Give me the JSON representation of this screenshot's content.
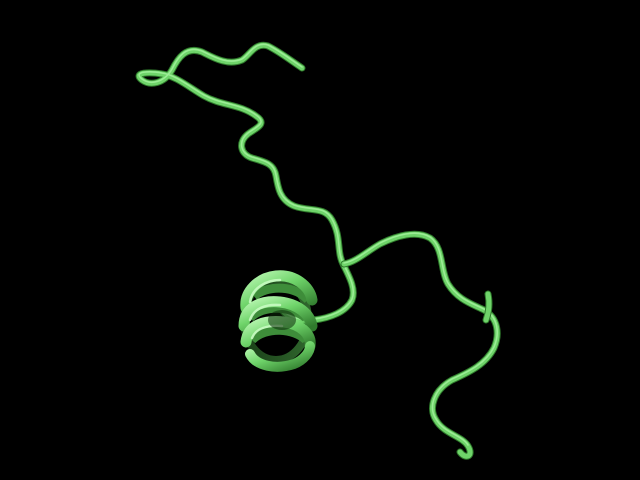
{
  "scene": {
    "subject": "protein-ribbon-structure",
    "background_color": "#000000",
    "ribbon_color": "#6fd46a",
    "ribbon_highlight": "#a6f3a0",
    "ribbon_shadow": "#2f7a2c",
    "secondary_structures": [
      "coil",
      "alpha-helix"
    ]
  }
}
